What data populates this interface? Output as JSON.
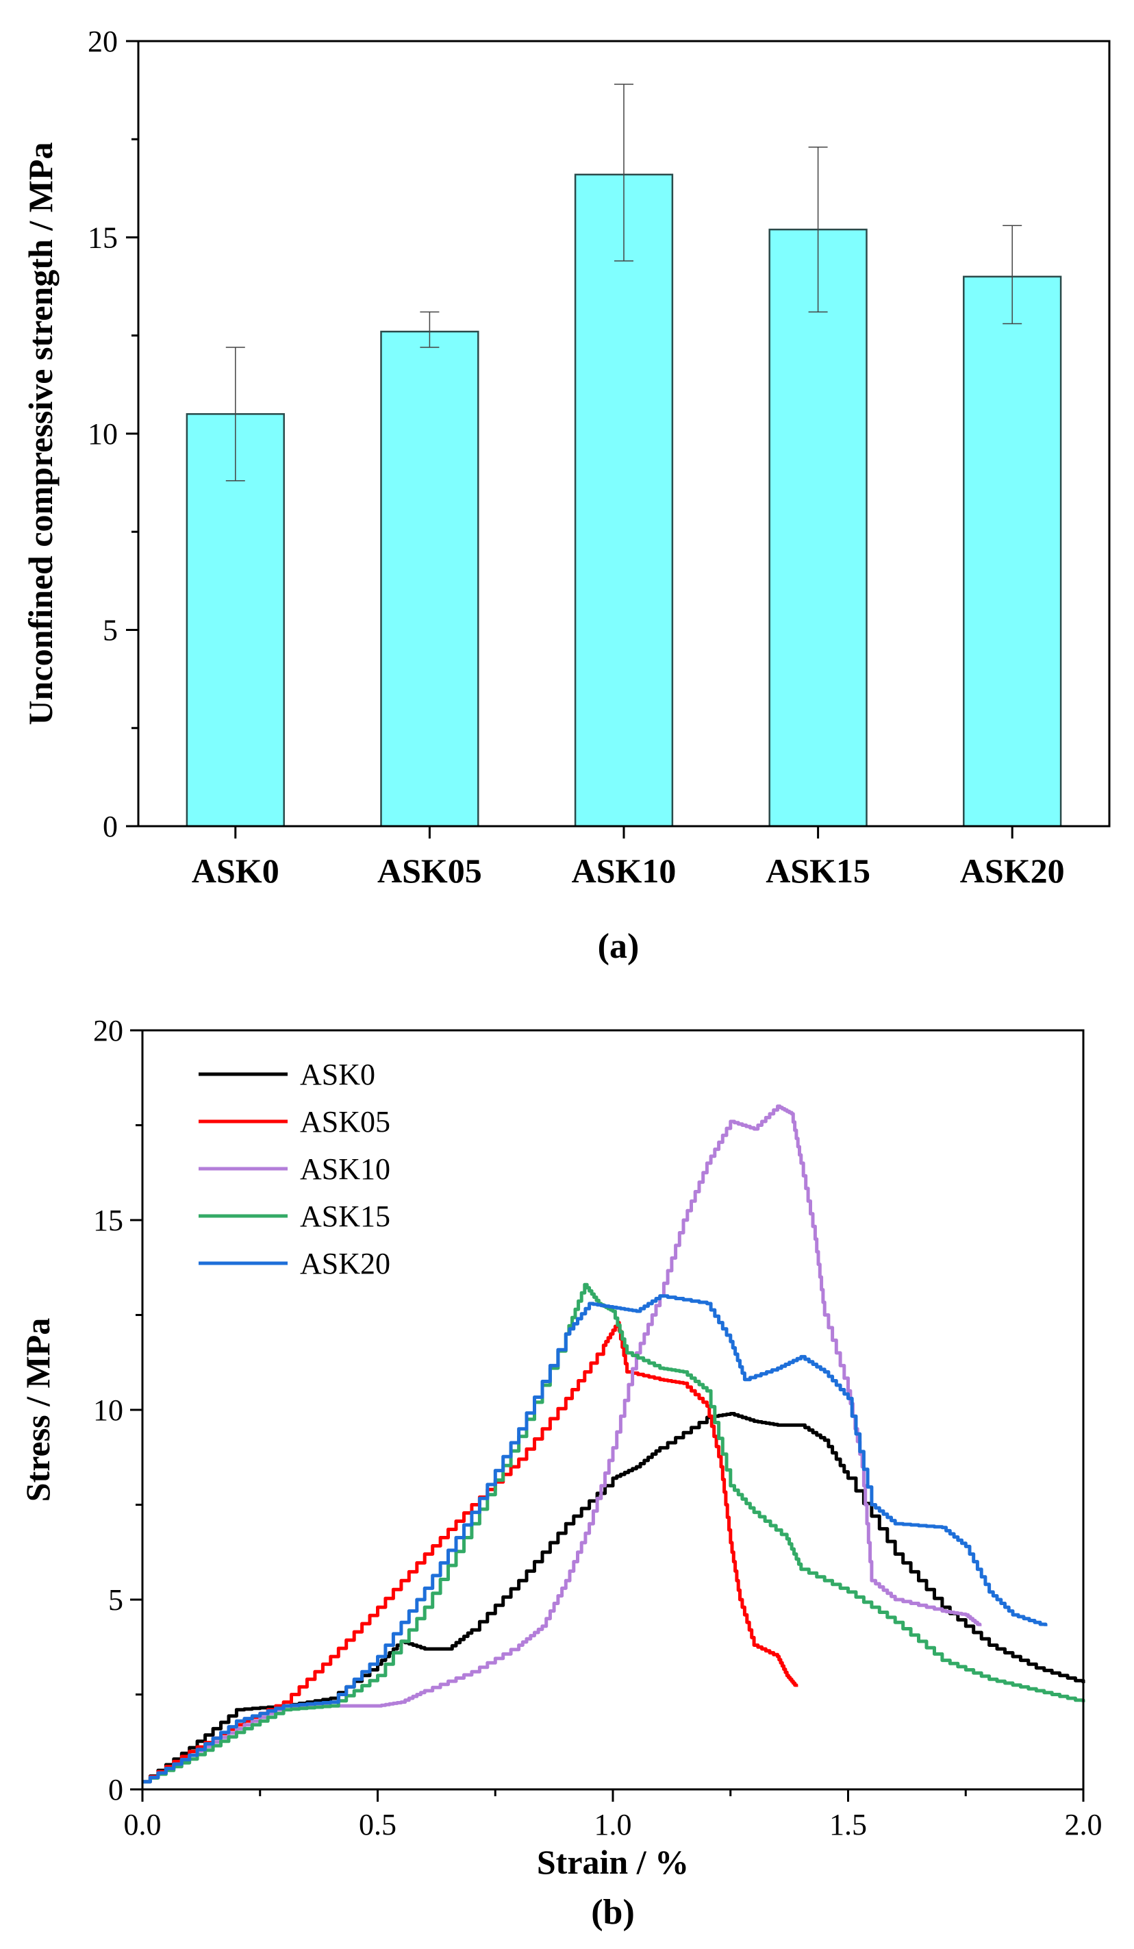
{
  "chart_data": [
    {
      "type": "bar",
      "panel_label": "(a)",
      "title": "",
      "xlabel": "",
      "ylabel": "Unconfined compressive strength / MPa",
      "ylim": [
        0,
        20
      ],
      "yticks": [
        0,
        5,
        10,
        15,
        20
      ],
      "categories": [
        "ASK0",
        "ASK05",
        "ASK10",
        "ASK15",
        "ASK20"
      ],
      "values": [
        10.5,
        12.6,
        16.6,
        15.2,
        14.0
      ],
      "error_low": [
        8.8,
        12.2,
        14.4,
        13.1,
        12.8
      ],
      "error_high": [
        12.2,
        13.1,
        18.9,
        17.3,
        15.3
      ],
      "bar_color": "#80ffff",
      "grid": false
    },
    {
      "type": "line",
      "panel_label": "(b)",
      "title": "",
      "xlabel": "Strain / %",
      "ylabel": "Stress / MPa",
      "xlim": [
        0,
        2.0
      ],
      "ylim": [
        0,
        20
      ],
      "xticks": [
        "0.0",
        "0.5",
        "1.0",
        "1.5",
        "2.0"
      ],
      "yticks": [
        "0",
        "5",
        "10",
        "15",
        "20"
      ],
      "legend": "top-left",
      "grid": false,
      "series": [
        {
          "name": "ASK0",
          "color": "#000000",
          "points": [
            [
              0,
              0.2
            ],
            [
              0.1,
              1.1
            ],
            [
              0.2,
              2.1
            ],
            [
              0.3,
              2.2
            ],
            [
              0.4,
              2.4
            ],
            [
              0.5,
              3.3
            ],
            [
              0.55,
              3.9
            ],
            [
              0.6,
              3.7
            ],
            [
              0.65,
              3.7
            ],
            [
              0.7,
              4.2
            ],
            [
              0.8,
              5.5
            ],
            [
              0.9,
              7.0
            ],
            [
              1.0,
              8.2
            ],
            [
              1.05,
              8.5
            ],
            [
              1.1,
              9.0
            ],
            [
              1.2,
              9.8
            ],
            [
              1.25,
              9.9
            ],
            [
              1.3,
              9.7
            ],
            [
              1.35,
              9.6
            ],
            [
              1.4,
              9.6
            ],
            [
              1.45,
              9.2
            ],
            [
              1.5,
              8.2
            ],
            [
              1.6,
              6.2
            ],
            [
              1.7,
              4.8
            ],
            [
              1.8,
              3.8
            ],
            [
              1.9,
              3.2
            ],
            [
              2.0,
              2.8
            ]
          ]
        },
        {
          "name": "ASK05",
          "color": "#ff0000",
          "points": [
            [
              0,
              0.2
            ],
            [
              0.1,
              1.0
            ],
            [
              0.2,
              1.7
            ],
            [
              0.3,
              2.3
            ],
            [
              0.4,
              3.5
            ],
            [
              0.5,
              4.8
            ],
            [
              0.6,
              6.2
            ],
            [
              0.7,
              7.5
            ],
            [
              0.8,
              8.7
            ],
            [
              0.9,
              10.3
            ],
            [
              0.98,
              11.7
            ],
            [
              1.01,
              12.3
            ],
            [
              1.03,
              11.0
            ],
            [
              1.1,
              10.8
            ],
            [
              1.15,
              10.7
            ],
            [
              1.2,
              10.1
            ],
            [
              1.23,
              8.5
            ],
            [
              1.25,
              6.5
            ],
            [
              1.27,
              5.0
            ],
            [
              1.3,
              3.8
            ],
            [
              1.35,
              3.5
            ],
            [
              1.37,
              3.0
            ],
            [
              1.39,
              2.7
            ]
          ]
        },
        {
          "name": "ASK10",
          "color": "#b37ed9",
          "points": [
            [
              0,
              0.2
            ],
            [
              0.1,
              0.9
            ],
            [
              0.2,
              1.6
            ],
            [
              0.3,
              2.2
            ],
            [
              0.4,
              2.2
            ],
            [
              0.5,
              2.2
            ],
            [
              0.55,
              2.3
            ],
            [
              0.6,
              2.6
            ],
            [
              0.7,
              3.1
            ],
            [
              0.8,
              3.8
            ],
            [
              0.85,
              4.3
            ],
            [
              0.9,
              5.5
            ],
            [
              0.95,
              7.0
            ],
            [
              1.0,
              9.0
            ],
            [
              1.05,
              11.5
            ],
            [
              1.1,
              13.0
            ],
            [
              1.15,
              15.0
            ],
            [
              1.2,
              16.5
            ],
            [
              1.25,
              17.6
            ],
            [
              1.3,
              17.4
            ],
            [
              1.35,
              18.0
            ],
            [
              1.38,
              17.8
            ],
            [
              1.4,
              16.5
            ],
            [
              1.43,
              14.5
            ],
            [
              1.45,
              12.5
            ],
            [
              1.5,
              10.5
            ],
            [
              1.53,
              8.5
            ],
            [
              1.55,
              5.5
            ],
            [
              1.6,
              5.0
            ],
            [
              1.7,
              4.7
            ],
            [
              1.75,
              4.6
            ],
            [
              1.78,
              4.3
            ]
          ]
        },
        {
          "name": "ASK15",
          "color": "#33aa66",
          "points": [
            [
              0,
              0.2
            ],
            [
              0.1,
              0.8
            ],
            [
              0.2,
              1.5
            ],
            [
              0.3,
              2.1
            ],
            [
              0.4,
              2.2
            ],
            [
              0.5,
              3.0
            ],
            [
              0.6,
              4.8
            ],
            [
              0.7,
              7.0
            ],
            [
              0.8,
              9.3
            ],
            [
              0.9,
              12.0
            ],
            [
              0.94,
              13.3
            ],
            [
              0.97,
              12.8
            ],
            [
              1.0,
              12.6
            ],
            [
              1.03,
              11.5
            ],
            [
              1.1,
              11.1
            ],
            [
              1.15,
              11.0
            ],
            [
              1.2,
              10.5
            ],
            [
              1.25,
              8.0
            ],
            [
              1.3,
              7.3
            ],
            [
              1.37,
              6.6
            ],
            [
              1.4,
              5.8
            ],
            [
              1.5,
              5.2
            ],
            [
              1.6,
              4.4
            ],
            [
              1.7,
              3.4
            ],
            [
              1.8,
              2.9
            ],
            [
              1.9,
              2.6
            ],
            [
              2.0,
              2.3
            ]
          ]
        },
        {
          "name": "ASK20",
          "color": "#1e6fd9",
          "points": [
            [
              0,
              0.2
            ],
            [
              0.1,
              0.9
            ],
            [
              0.2,
              1.8
            ],
            [
              0.3,
              2.2
            ],
            [
              0.4,
              2.3
            ],
            [
              0.5,
              3.5
            ],
            [
              0.6,
              5.3
            ],
            [
              0.7,
              7.3
            ],
            [
              0.8,
              9.5
            ],
            [
              0.9,
              12.0
            ],
            [
              0.95,
              12.8
            ],
            [
              1.0,
              12.7
            ],
            [
              1.05,
              12.6
            ],
            [
              1.1,
              13.0
            ],
            [
              1.2,
              12.8
            ],
            [
              1.25,
              11.8
            ],
            [
              1.28,
              10.8
            ],
            [
              1.35,
              11.1
            ],
            [
              1.4,
              11.4
            ],
            [
              1.45,
              11.0
            ],
            [
              1.5,
              10.3
            ],
            [
              1.55,
              7.5
            ],
            [
              1.6,
              7.0
            ],
            [
              1.7,
              6.9
            ],
            [
              1.75,
              6.4
            ],
            [
              1.8,
              5.2
            ],
            [
              1.85,
              4.6
            ],
            [
              1.92,
              4.3
            ]
          ]
        }
      ]
    }
  ]
}
